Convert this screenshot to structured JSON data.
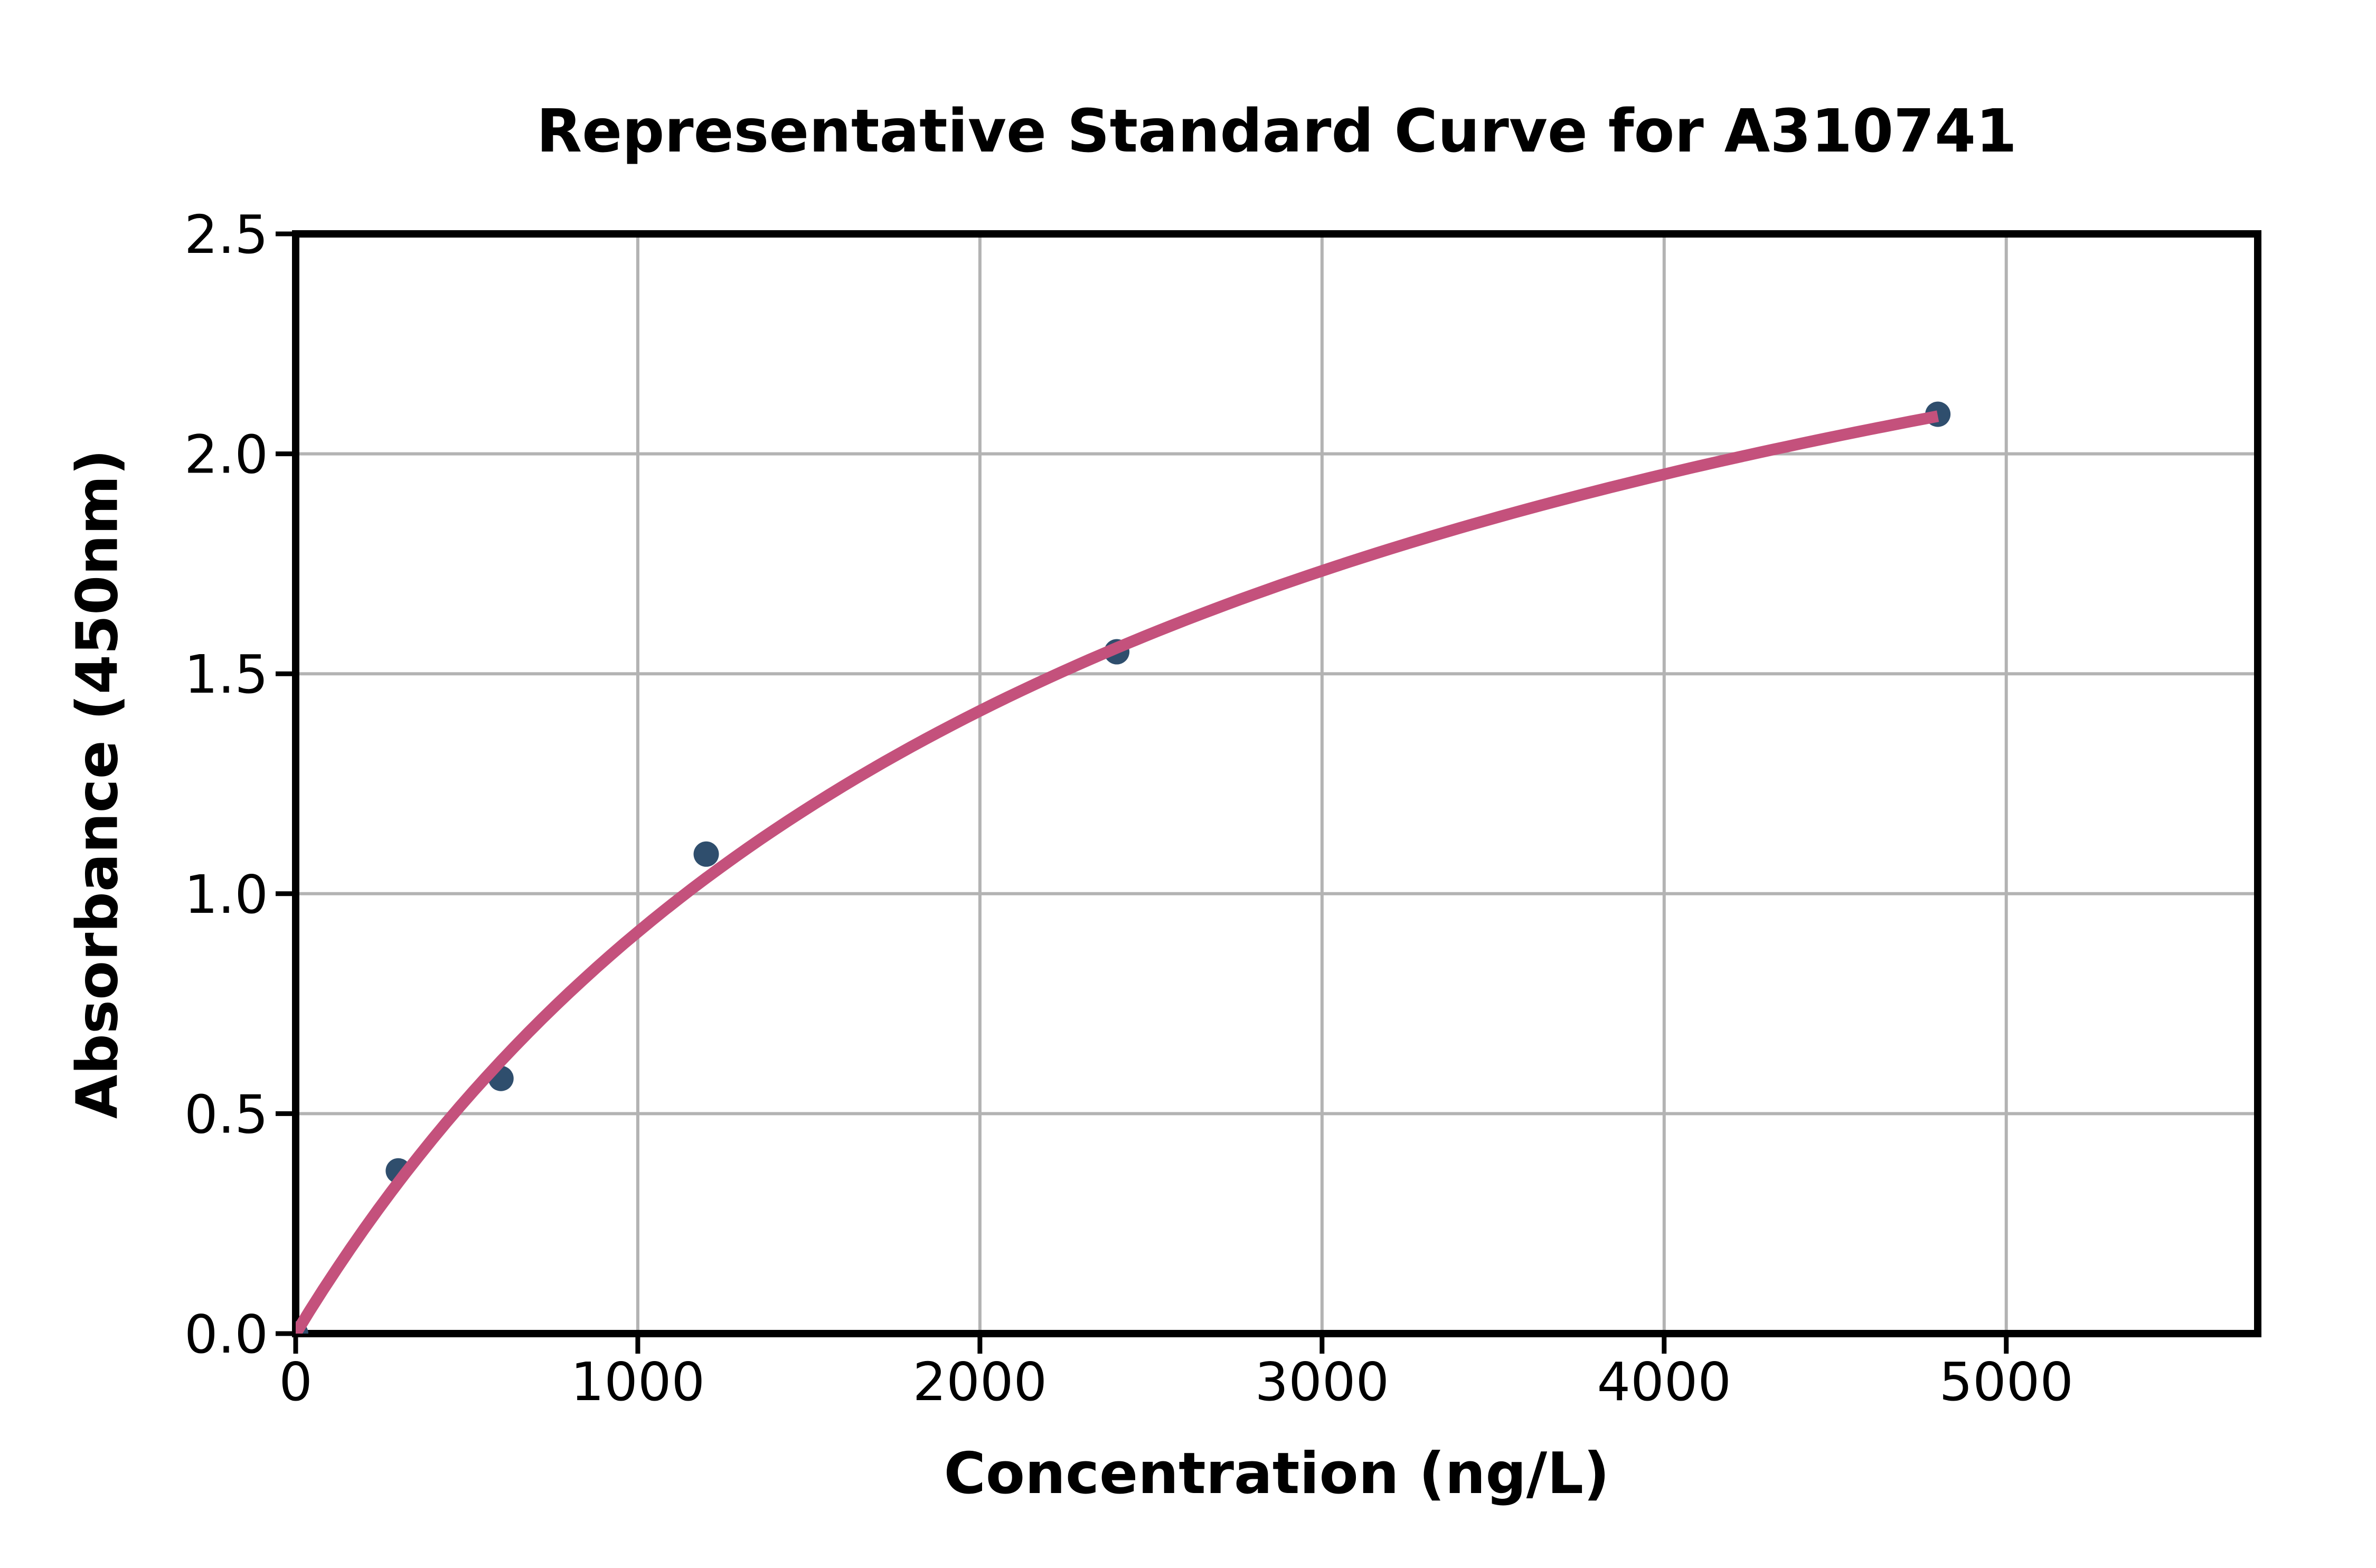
{
  "title": "Representative Standard Curve for A310741",
  "axes": {
    "x": {
      "label": "Concentration (ng/L)",
      "tick_labels": [
        "0",
        "1000",
        "2000",
        "3000",
        "4000",
        "5000"
      ],
      "tick_values": [
        0,
        1000,
        2000,
        3000,
        4000,
        5000
      ]
    },
    "y": {
      "label": "Absorbance (450nm)",
      "tick_labels": [
        "0.0",
        "0.5",
        "1.0",
        "1.5",
        "2.0",
        "2.5"
      ],
      "tick_values": [
        0,
        0.5,
        1.0,
        1.5,
        2.0,
        2.5
      ]
    }
  },
  "chart_data": {
    "type": "scatter",
    "title": "Representative Standard Curve for A310741",
    "xlabel": "Concentration (ng/L)",
    "ylabel": "Absorbance (450nm)",
    "points": [
      {
        "x": 0,
        "y": 0.0
      },
      {
        "x": 300,
        "y": 0.37
      },
      {
        "x": 600,
        "y": 0.58
      },
      {
        "x": 1200,
        "y": 1.09
      },
      {
        "x": 2400,
        "y": 1.55
      },
      {
        "x": 4800,
        "y": 2.09
      }
    ],
    "fit_curve": {
      "model": "michaelis_menten",
      "formula": "y = Vmax * x / (Km + x)",
      "vmax": 3.15,
      "km": 2450,
      "x_start": 0,
      "x_end": 4800
    },
    "xlim": [
      0,
      5735
    ],
    "ylim": [
      0,
      2.5
    ],
    "grid": true,
    "legend_position": "none",
    "colors": {
      "marker": "#2F4E6D",
      "curve": "#C4517C",
      "grid": "#B3B3B3",
      "axis": "#000000"
    }
  }
}
